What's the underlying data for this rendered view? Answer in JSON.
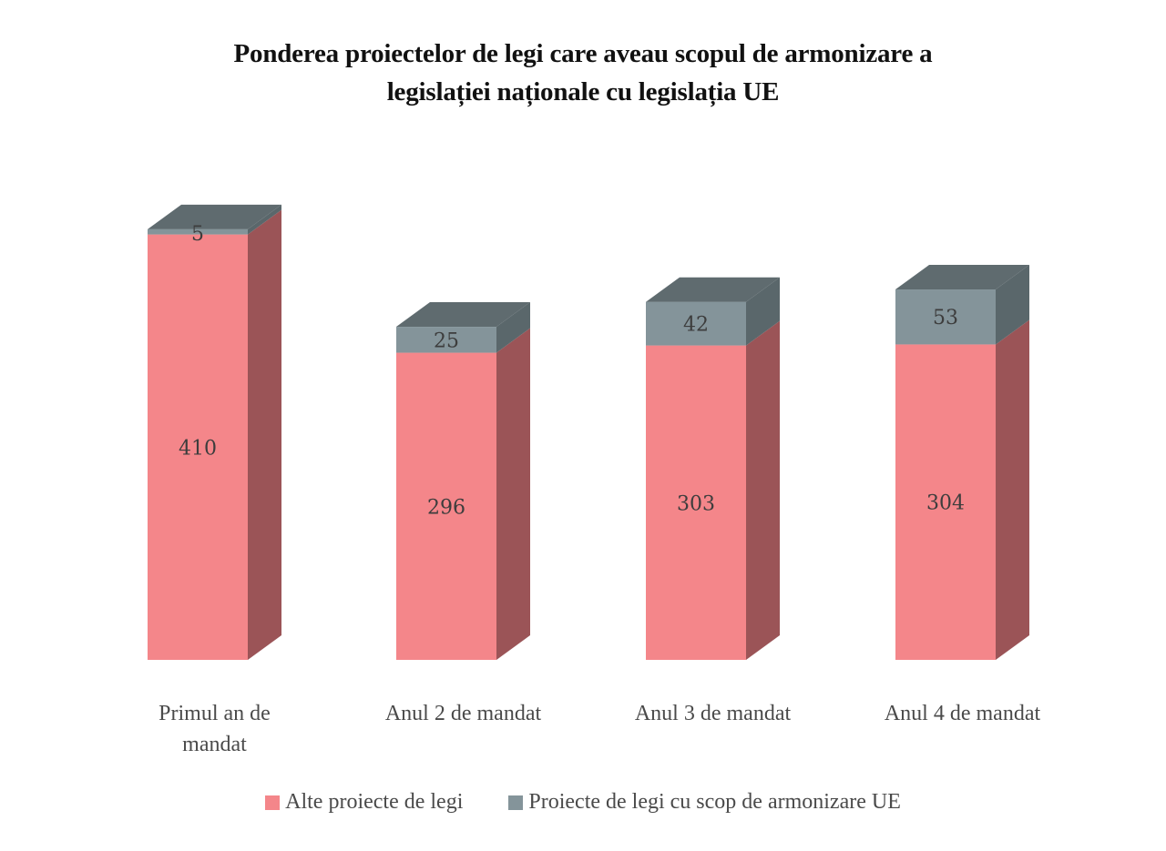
{
  "chart_data": {
    "type": "bar",
    "stacked": true,
    "style": "3d-column",
    "title": "Ponderea proiectelor de legi care aveau scopul de armonizare a legislației naționale cu legislația UE",
    "title_lines": [
      "Ponderea proiectelor de legi care aveau scopul de armonizare a",
      "legislației naționale cu legislația UE"
    ],
    "categories": [
      [
        "Primul an de",
        "mandat"
      ],
      [
        "Anul 2 de mandat"
      ],
      [
        "Anul 3 de mandat"
      ],
      [
        "Anul 4 de mandat"
      ]
    ],
    "series": [
      {
        "name": "Alte proiecte de legi",
        "values": [
          410,
          296,
          303,
          304
        ],
        "color": "#f4868a",
        "side_color": "#9b5457"
      },
      {
        "name": "Proiecte de legi cu scop de armonizare UE",
        "values": [
          5,
          25,
          42,
          53
        ],
        "color": "#84949a",
        "side_color": "#5a676b",
        "top_color": "#5f6b6f"
      }
    ],
    "xlabel": "",
    "ylabel": "",
    "grid": false,
    "axes_visible": false,
    "data_labels": true,
    "legend_position": "bottom"
  }
}
